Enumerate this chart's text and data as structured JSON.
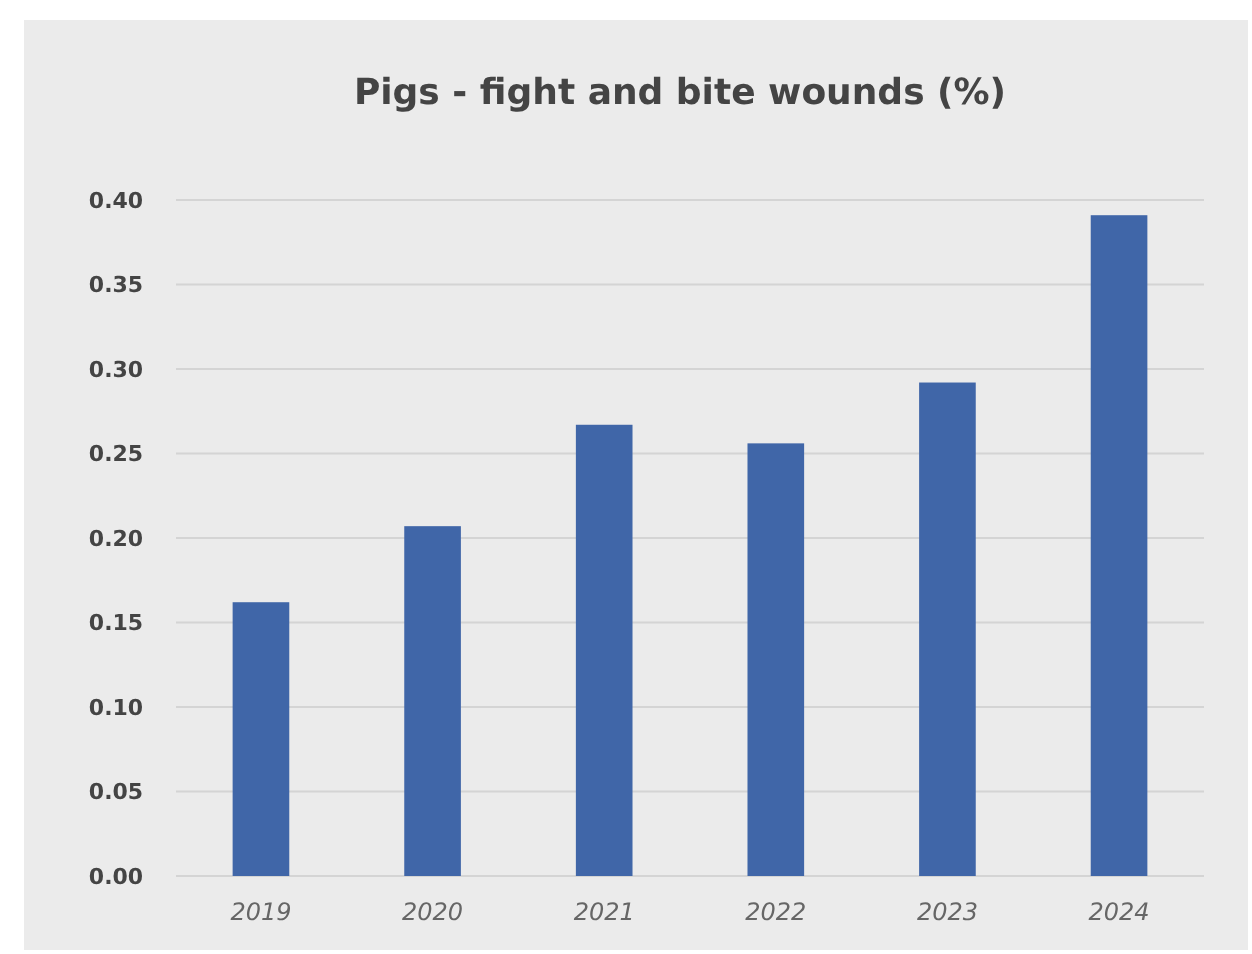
{
  "chart_data": {
    "type": "bar",
    "title": "Pigs - fight and bite wounds (%)",
    "categories": [
      "2019",
      "2020",
      "2021",
      "2022",
      "2023",
      "2024"
    ],
    "values": [
      0.162,
      0.207,
      0.267,
      0.256,
      0.292,
      0.391
    ],
    "color": "#4066a8",
    "ylim": [
      0,
      0.4
    ],
    "yticks": [
      {
        "value": 0,
        "label": "0.00"
      },
      {
        "value": 0.05,
        "label": "0.05"
      },
      {
        "value": 0.1,
        "label": "0.10"
      },
      {
        "value": 0.15,
        "label": "0.15"
      },
      {
        "value": 0.2,
        "label": "0.20"
      },
      {
        "value": 0.25,
        "label": "0.25"
      },
      {
        "value": 0.3,
        "label": "0.30"
      },
      {
        "value": 0.35,
        "label": "0.35"
      },
      {
        "value": 0.4,
        "label": "0.40"
      }
    ],
    "grid": "y"
  }
}
